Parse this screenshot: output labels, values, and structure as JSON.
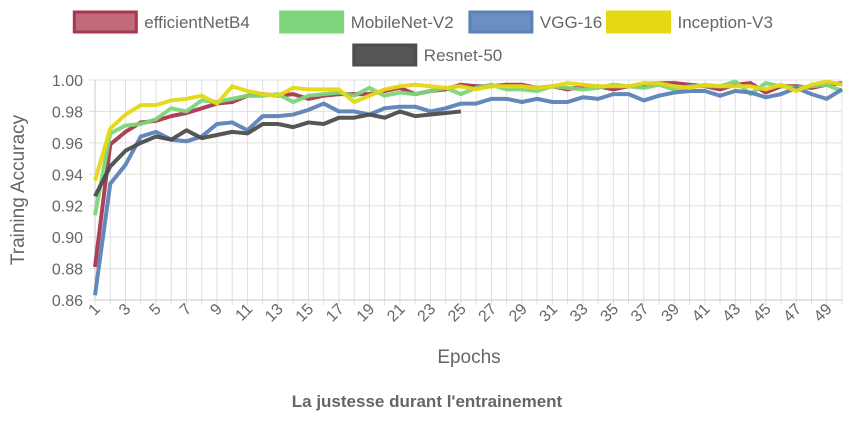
{
  "chart_data": {
    "type": "line",
    "title": "La justesse durant l'entrainement",
    "xlabel": "Epochs",
    "ylabel": "Training Accuracy",
    "ylim": [
      0.86,
      1.0
    ],
    "yticks": [
      "0.86",
      "0.88",
      "0.90",
      "0.92",
      "0.94",
      "0.96",
      "0.98",
      "1.00"
    ],
    "xticks": [
      "1",
      "3",
      "5",
      "7",
      "9",
      "11",
      "13",
      "15",
      "17",
      "19",
      "21",
      "23",
      "25",
      "27",
      "29",
      "31",
      "33",
      "35",
      "37",
      "39",
      "41",
      "43",
      "45",
      "47",
      "49"
    ],
    "x_range": [
      1,
      50
    ],
    "grid": true,
    "legend_position": "top",
    "series": [
      {
        "name": "efficientNetB4",
        "color": "#a8374f",
        "fill": "#c06a7c",
        "x": [
          1,
          2,
          3,
          4,
          5,
          6,
          7,
          8,
          9,
          10,
          11,
          12,
          13,
          14,
          15,
          16,
          17,
          18,
          19,
          20,
          21,
          22,
          23,
          24,
          25,
          26,
          27,
          28,
          29,
          30,
          31,
          32,
          33,
          34,
          35,
          36,
          37,
          38,
          39,
          40,
          41,
          42,
          43,
          44,
          45,
          46,
          47,
          48,
          49,
          50
        ],
        "values": [
          0.881,
          0.959,
          0.967,
          0.973,
          0.974,
          0.977,
          0.979,
          0.982,
          0.985,
          0.986,
          0.99,
          0.991,
          0.99,
          0.991,
          0.988,
          0.99,
          0.991,
          0.991,
          0.991,
          0.993,
          0.995,
          0.991,
          0.993,
          0.994,
          0.997,
          0.996,
          0.996,
          0.997,
          0.997,
          0.995,
          0.996,
          0.994,
          0.996,
          0.996,
          0.994,
          0.996,
          0.996,
          0.998,
          0.998,
          0.997,
          0.996,
          0.994,
          0.997,
          0.998,
          0.992,
          0.996,
          0.996,
          0.995,
          0.997,
          0.998
        ]
      },
      {
        "name": "MobileNet-V2",
        "color": "#7dd47a",
        "fill": "#7dd47a",
        "x": [
          1,
          2,
          3,
          4,
          5,
          6,
          7,
          8,
          9,
          10,
          11,
          12,
          13,
          14,
          15,
          16,
          17,
          18,
          19,
          20,
          21,
          22,
          23,
          24,
          25,
          26,
          27,
          28,
          29,
          30,
          31,
          32,
          33,
          34,
          35,
          36,
          37,
          38,
          39,
          40,
          41,
          42,
          43,
          44,
          45,
          46,
          47,
          48,
          49,
          50
        ],
        "values": [
          0.914,
          0.966,
          0.971,
          0.972,
          0.975,
          0.982,
          0.98,
          0.987,
          0.986,
          0.988,
          0.99,
          0.99,
          0.991,
          0.986,
          0.99,
          0.991,
          0.992,
          0.99,
          0.995,
          0.99,
          0.992,
          0.991,
          0.993,
          0.995,
          0.991,
          0.995,
          0.997,
          0.994,
          0.994,
          0.993,
          0.996,
          0.995,
          0.994,
          0.995,
          0.997,
          0.996,
          0.995,
          0.997,
          0.994,
          0.996,
          0.996,
          0.996,
          0.999,
          0.991,
          0.998,
          0.996,
          0.995,
          0.996,
          0.997,
          0.993
        ]
      },
      {
        "name": "VGG-16",
        "color": "#5b82b5",
        "fill": "#6b8fc0",
        "x": [
          1,
          2,
          3,
          4,
          5,
          6,
          7,
          8,
          9,
          10,
          11,
          12,
          13,
          14,
          15,
          16,
          17,
          18,
          19,
          20,
          21,
          22,
          23,
          24,
          25,
          26,
          27,
          28,
          29,
          30,
          31,
          32,
          33,
          34,
          35,
          36,
          37,
          38,
          39,
          40,
          41,
          42,
          43,
          44,
          45,
          46,
          47,
          48,
          49,
          50
        ],
        "values": [
          0.863,
          0.934,
          0.946,
          0.964,
          0.967,
          0.962,
          0.961,
          0.964,
          0.972,
          0.973,
          0.968,
          0.977,
          0.977,
          0.978,
          0.981,
          0.985,
          0.98,
          0.98,
          0.978,
          0.982,
          0.983,
          0.983,
          0.98,
          0.982,
          0.985,
          0.985,
          0.988,
          0.988,
          0.986,
          0.988,
          0.986,
          0.986,
          0.989,
          0.988,
          0.991,
          0.991,
          0.987,
          0.99,
          0.992,
          0.993,
          0.993,
          0.99,
          0.993,
          0.992,
          0.989,
          0.991,
          0.995,
          0.991,
          0.988,
          0.994
        ]
      },
      {
        "name": "Inception-V3",
        "color": "#e5d814",
        "fill": "#e5d814",
        "x": [
          1,
          2,
          3,
          4,
          5,
          6,
          7,
          8,
          9,
          10,
          11,
          12,
          13,
          14,
          15,
          16,
          17,
          18,
          19,
          20,
          21,
          22,
          23,
          24,
          25,
          26,
          27,
          28,
          29,
          30,
          31,
          32,
          33,
          34,
          35,
          36,
          37,
          38,
          39,
          40,
          41,
          42,
          43,
          44,
          45,
          46,
          47,
          48,
          49,
          50
        ],
        "values": [
          0.936,
          0.969,
          0.978,
          0.984,
          0.984,
          0.987,
          0.988,
          0.99,
          0.985,
          0.996,
          0.993,
          0.991,
          0.99,
          0.995,
          0.994,
          0.994,
          0.994,
          0.986,
          0.99,
          0.994,
          0.996,
          0.997,
          0.996,
          0.995,
          0.996,
          0.994,
          0.996,
          0.996,
          0.996,
          0.995,
          0.996,
          0.998,
          0.997,
          0.996,
          0.996,
          0.996,
          0.998,
          0.998,
          0.996,
          0.995,
          0.997,
          0.996,
          0.996,
          0.996,
          0.994,
          0.997,
          0.993,
          0.997,
          0.999,
          0.997
        ]
      },
      {
        "name": "Resnet-50",
        "color": "#4d4d4d",
        "fill": "#555555",
        "x": [
          1,
          2,
          3,
          4,
          5,
          6,
          7,
          8,
          9,
          10,
          11,
          12,
          13,
          14,
          15,
          16,
          17,
          18,
          19,
          20,
          21,
          22,
          23,
          24,
          25
        ],
        "values": [
          0.926,
          0.945,
          0.955,
          0.96,
          0.964,
          0.962,
          0.968,
          0.963,
          0.965,
          0.967,
          0.966,
          0.972,
          0.972,
          0.97,
          0.973,
          0.972,
          0.976,
          0.976,
          0.978,
          0.976,
          0.98,
          0.977,
          0.978,
          0.979,
          0.98
        ]
      }
    ]
  }
}
